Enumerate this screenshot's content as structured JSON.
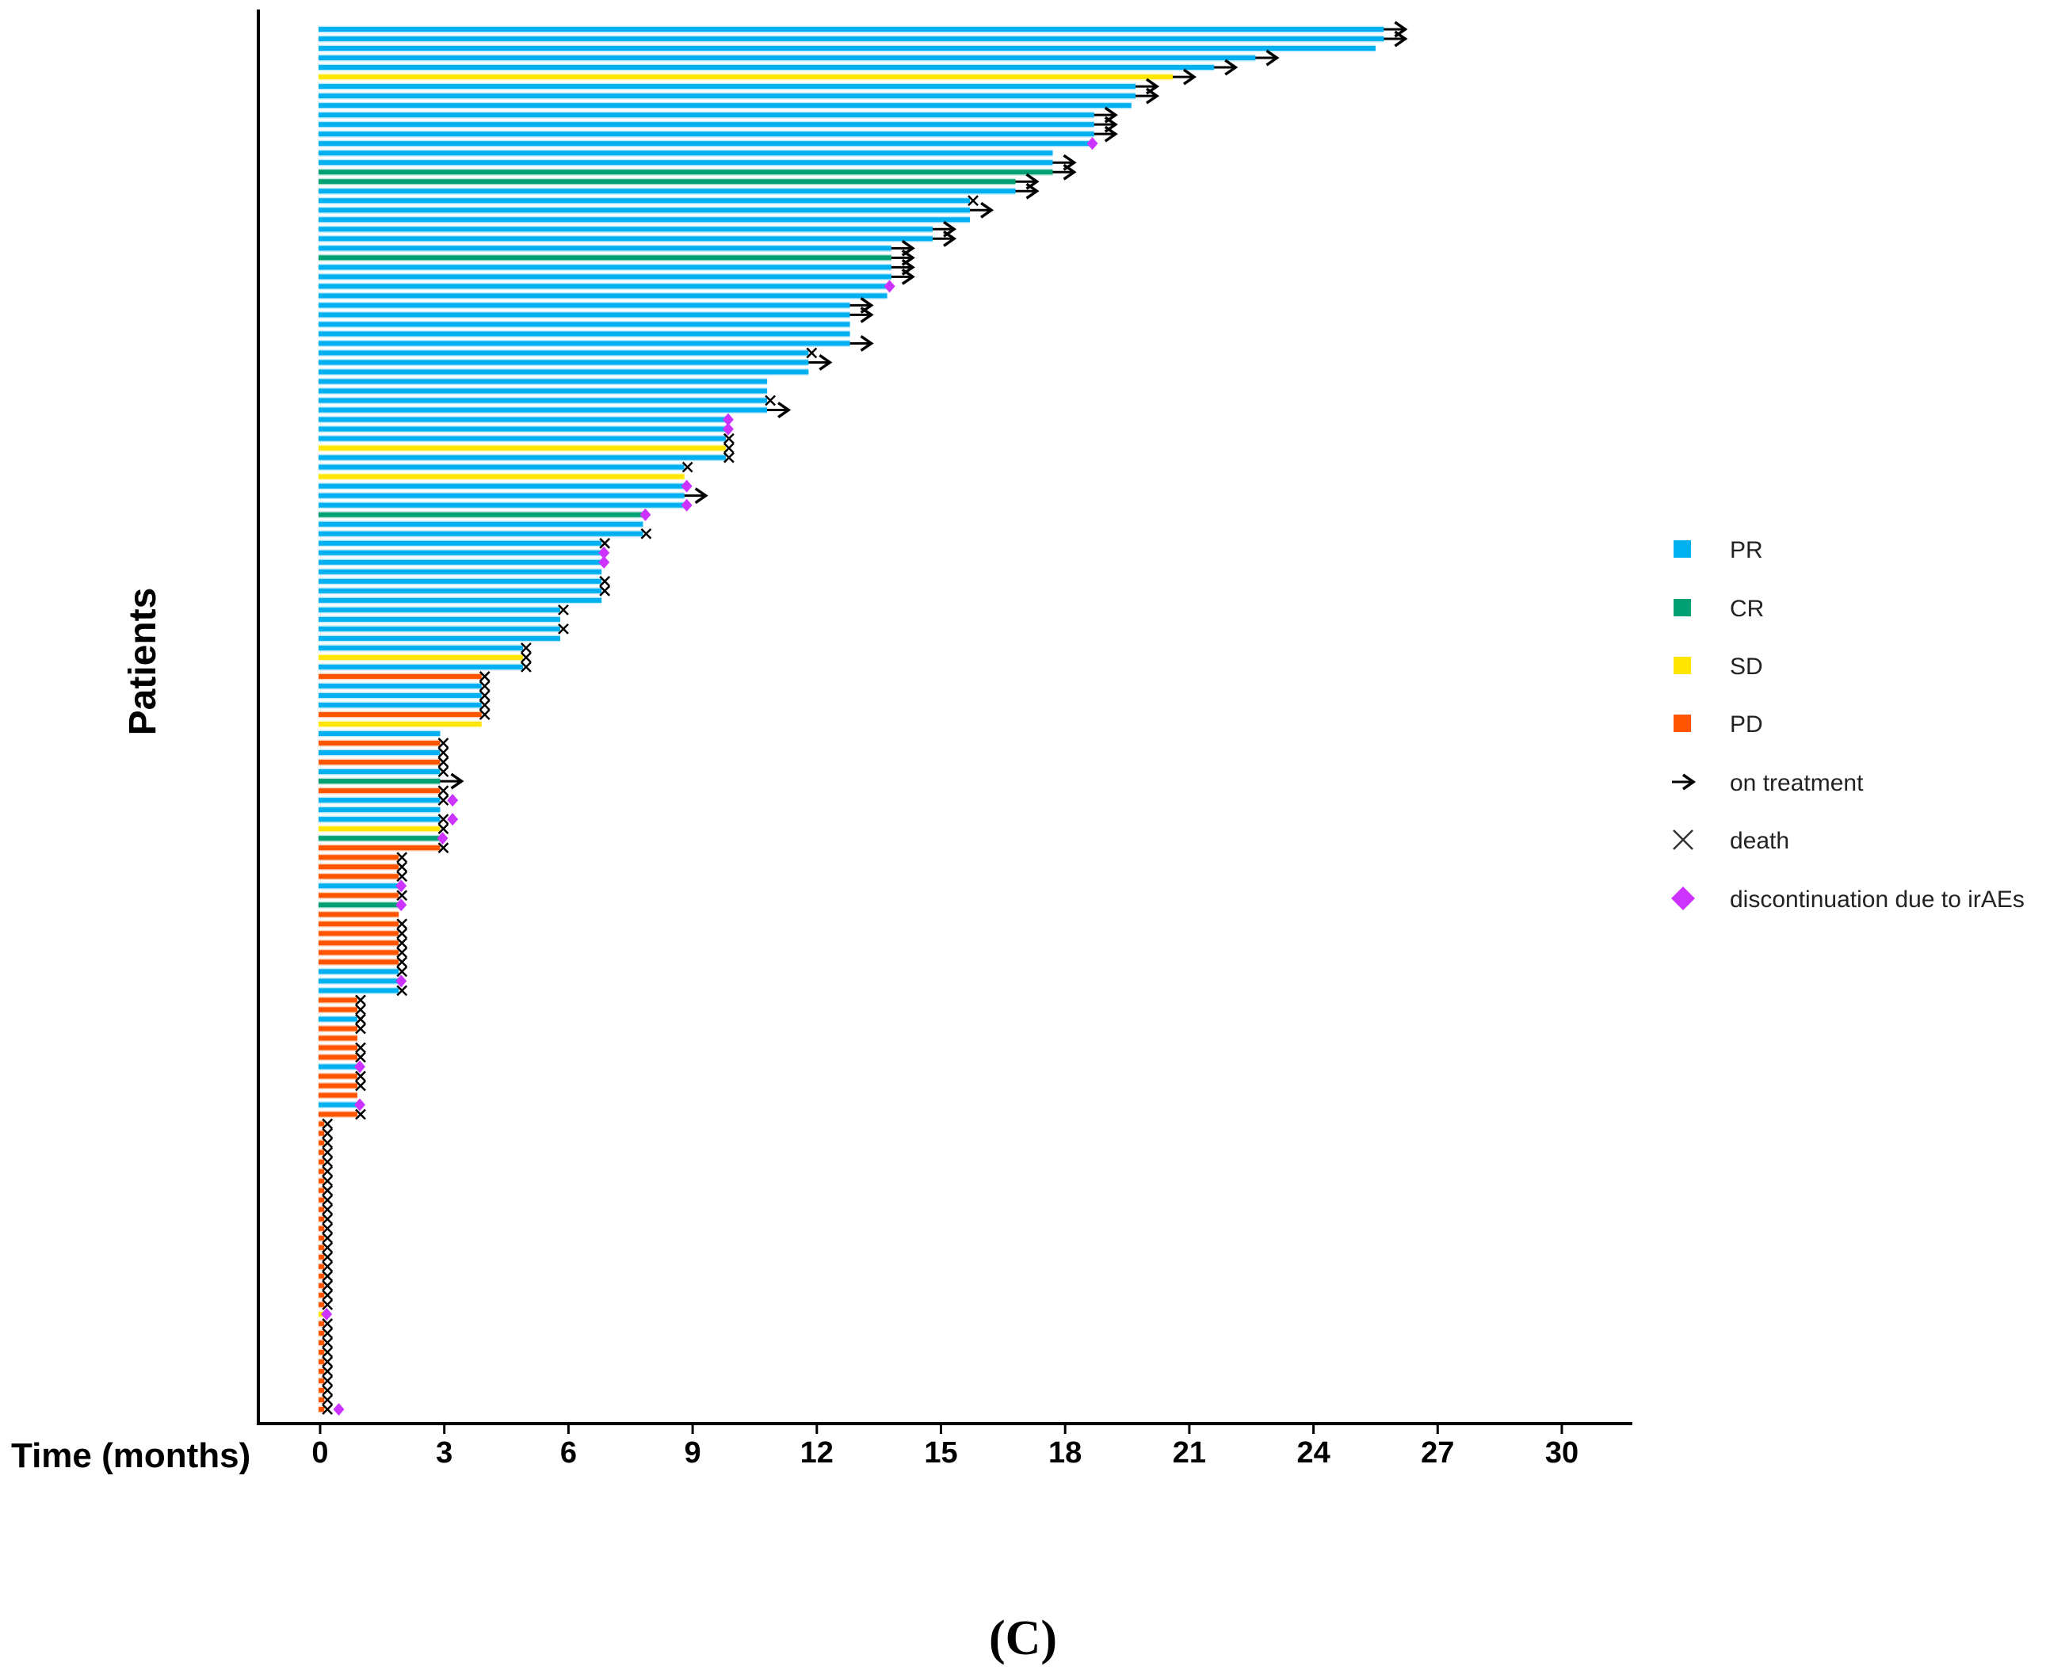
{
  "chart_data": {
    "type": "bar",
    "orientation": "horizontal",
    "subtype": "swimmer",
    "xlabel": "Time (months)",
    "ylabel": "Patients",
    "xlim": [
      0,
      30
    ],
    "xticks": [
      "0",
      "3",
      "6",
      "9",
      "12",
      "15",
      "18",
      "21",
      "24",
      "27",
      "30"
    ],
    "grid": false,
    "legend_position": "right",
    "caption": "(C)",
    "colors": {
      "PR": "#00B0F0",
      "CR": "#00A073",
      "SD": "#FFE600",
      "PD": "#FF5500",
      "death": "#000000",
      "on": "#000000",
      "d": "#CC33FF"
    },
    "legend": [
      {
        "key": "PR",
        "label": "PR",
        "kind": "square"
      },
      {
        "key": "CR",
        "label": "CR",
        "kind": "square"
      },
      {
        "key": "SD",
        "label": "SD",
        "kind": "square"
      },
      {
        "key": "PD",
        "label": "PD",
        "kind": "square"
      },
      {
        "key": "on",
        "label": "on treatment",
        "kind": "arrow"
      },
      {
        "key": "x",
        "label": "death",
        "kind": "cross"
      },
      {
        "key": "d",
        "label": "discontinuation due to irAEs",
        "kind": "diamond"
      }
    ],
    "patients": [
      [
        "PR",
        25.7,
        "on"
      ],
      [
        "PR",
        25.7,
        "on"
      ],
      [
        "PR",
        25.5,
        ""
      ],
      [
        "PR",
        22.6,
        "on"
      ],
      [
        "PR",
        21.6,
        "on"
      ],
      [
        "SD",
        20.6,
        "on"
      ],
      [
        "PR",
        19.7,
        "on"
      ],
      [
        "PR",
        19.7,
        "on"
      ],
      [
        "PR",
        19.6,
        ""
      ],
      [
        "PR",
        18.7,
        "on"
      ],
      [
        "PR",
        18.7,
        "on"
      ],
      [
        "PR",
        18.7,
        "on"
      ],
      [
        "PR",
        18.6,
        "d"
      ],
      [
        "PR",
        17.7,
        ""
      ],
      [
        "PR",
        17.7,
        "on"
      ],
      [
        "CR",
        17.7,
        "on"
      ],
      [
        "CR",
        16.8,
        "on"
      ],
      [
        "PR",
        16.8,
        "on"
      ],
      [
        "PR",
        15.7,
        "x"
      ],
      [
        "PR",
        15.7,
        "on"
      ],
      [
        "PR",
        15.7,
        ""
      ],
      [
        "PR",
        14.8,
        "on"
      ],
      [
        "PR",
        14.8,
        "on"
      ],
      [
        "PR",
        13.8,
        "on"
      ],
      [
        "CR",
        13.8,
        "on"
      ],
      [
        "PR",
        13.8,
        "on"
      ],
      [
        "PR",
        13.8,
        "on"
      ],
      [
        "PR",
        13.7,
        "d"
      ],
      [
        "PR",
        13.7,
        ""
      ],
      [
        "PR",
        12.8,
        "on"
      ],
      [
        "PR",
        12.8,
        "on"
      ],
      [
        "PR",
        12.8,
        ""
      ],
      [
        "PR",
        12.8,
        ""
      ],
      [
        "PR",
        12.8,
        "on"
      ],
      [
        "PR",
        11.8,
        "x"
      ],
      [
        "PR",
        11.8,
        "on"
      ],
      [
        "PR",
        11.8,
        ""
      ],
      [
        "PR",
        10.8,
        ""
      ],
      [
        "PR",
        10.8,
        ""
      ],
      [
        "PR",
        10.8,
        "x"
      ],
      [
        "PR",
        10.8,
        "on"
      ],
      [
        "PR",
        9.8,
        "d"
      ],
      [
        "PR",
        9.8,
        "d"
      ],
      [
        "PR",
        9.8,
        "x"
      ],
      [
        "SD",
        9.8,
        "x"
      ],
      [
        "PR",
        9.8,
        "x"
      ],
      [
        "PR",
        8.8,
        "x"
      ],
      [
        "SD",
        8.8,
        ""
      ],
      [
        "PR",
        8.8,
        "d"
      ],
      [
        "PR",
        8.8,
        "on"
      ],
      [
        "PR",
        8.8,
        "d"
      ],
      [
        "CR",
        7.8,
        "d"
      ],
      [
        "PR",
        7.8,
        ""
      ],
      [
        "PR",
        7.8,
        "x"
      ],
      [
        "PR",
        6.8,
        "x"
      ],
      [
        "PR",
        6.8,
        "d"
      ],
      [
        "PR",
        6.8,
        "d"
      ],
      [
        "PR",
        6.8,
        ""
      ],
      [
        "PR",
        6.8,
        "x"
      ],
      [
        "PR",
        6.8,
        "x"
      ],
      [
        "PR",
        6.8,
        ""
      ],
      [
        "PR",
        5.8,
        "x"
      ],
      [
        "PR",
        5.8,
        ""
      ],
      [
        "PR",
        5.8,
        "x"
      ],
      [
        "PR",
        5.8,
        ""
      ],
      [
        "PR",
        4.9,
        "x"
      ],
      [
        "SD",
        4.9,
        "x"
      ],
      [
        "PR",
        4.9,
        "x"
      ],
      [
        "PD",
        3.9,
        "x"
      ],
      [
        "PR",
        3.9,
        "x"
      ],
      [
        "PR",
        3.9,
        "x"
      ],
      [
        "PR",
        3.9,
        "x"
      ],
      [
        "PD",
        3.9,
        "x"
      ],
      [
        "SD",
        3.9,
        ""
      ],
      [
        "PR",
        2.9,
        ""
      ],
      [
        "PD",
        2.9,
        "x"
      ],
      [
        "PR",
        2.9,
        "x"
      ],
      [
        "PD",
        2.9,
        "x"
      ],
      [
        "PR",
        2.9,
        "x"
      ],
      [
        "CR",
        2.9,
        "on"
      ],
      [
        "PD",
        2.9,
        "x"
      ],
      [
        "PR",
        2.9,
        "x",
        3.2
      ],
      [
        "PR",
        2.9,
        ""
      ],
      [
        "PR",
        2.9,
        "x",
        3.2
      ],
      [
        "SD",
        2.9,
        "x"
      ],
      [
        "CR",
        2.9,
        "d"
      ],
      [
        "PD",
        2.9,
        "x"
      ],
      [
        "PD",
        1.9,
        "x"
      ],
      [
        "PD",
        1.9,
        "x"
      ],
      [
        "PD",
        1.9,
        "x"
      ],
      [
        "PR",
        1.9,
        "d"
      ],
      [
        "PD",
        1.9,
        "x"
      ],
      [
        "CR",
        1.9,
        "d"
      ],
      [
        "PD",
        1.9,
        ""
      ],
      [
        "PD",
        1.9,
        "x"
      ],
      [
        "PD",
        1.9,
        "x"
      ],
      [
        "PD",
        1.9,
        "x"
      ],
      [
        "PD",
        1.9,
        "x"
      ],
      [
        "PD",
        1.9,
        "x"
      ],
      [
        "PR",
        1.9,
        "x"
      ],
      [
        "PR",
        1.9,
        "d"
      ],
      [
        "PR",
        1.9,
        "x"
      ],
      [
        "PD",
        0.9,
        "x"
      ],
      [
        "PD",
        0.9,
        "x"
      ],
      [
        "PR",
        0.9,
        "x"
      ],
      [
        "PD",
        0.9,
        "x"
      ],
      [
        "PD",
        0.9,
        ""
      ],
      [
        "PD",
        0.9,
        "x"
      ],
      [
        "PD",
        0.9,
        "x"
      ],
      [
        "PR",
        0.9,
        "d"
      ],
      [
        "PD",
        0.9,
        "x"
      ],
      [
        "PD",
        0.9,
        "x"
      ],
      [
        "PD",
        0.9,
        ""
      ],
      [
        "PR",
        0.9,
        "d"
      ],
      [
        "PD",
        0.9,
        "x"
      ],
      [
        "PD",
        0.1,
        "x"
      ],
      [
        "PD",
        0.1,
        "x"
      ],
      [
        "PD",
        0.1,
        "x"
      ],
      [
        "PD",
        0.1,
        "x"
      ],
      [
        "PD",
        0.1,
        "x"
      ],
      [
        "PD",
        0.1,
        "x"
      ],
      [
        "PD",
        0.1,
        "x"
      ],
      [
        "PD",
        0.1,
        "x"
      ],
      [
        "PD",
        0.1,
        "x"
      ],
      [
        "PD",
        0.1,
        "x"
      ],
      [
        "PD",
        0.1,
        "x"
      ],
      [
        "PD",
        0.1,
        "x"
      ],
      [
        "PD",
        0.1,
        "x"
      ],
      [
        "PD",
        0.1,
        "x"
      ],
      [
        "PD",
        0.1,
        "x"
      ],
      [
        "PD",
        0.1,
        "x"
      ],
      [
        "PD",
        0.1,
        "x"
      ],
      [
        "PD",
        0.1,
        "x"
      ],
      [
        "PD",
        0.1,
        "x"
      ],
      [
        "PD",
        0.1,
        "x"
      ],
      [
        "SD",
        0.1,
        "d"
      ],
      [
        "PD",
        0.1,
        "x"
      ],
      [
        "PD",
        0.1,
        "x"
      ],
      [
        "PD",
        0.1,
        "x"
      ],
      [
        "PD",
        0.1,
        "x"
      ],
      [
        "PD",
        0.1,
        "x"
      ],
      [
        "PD",
        0.1,
        "x"
      ],
      [
        "PD",
        0.1,
        "x"
      ],
      [
        "PD",
        0.1,
        "x"
      ],
      [
        "PD",
        0.1,
        "x"
      ],
      [
        "PD",
        0.1,
        "x",
        0.45
      ]
    ]
  }
}
